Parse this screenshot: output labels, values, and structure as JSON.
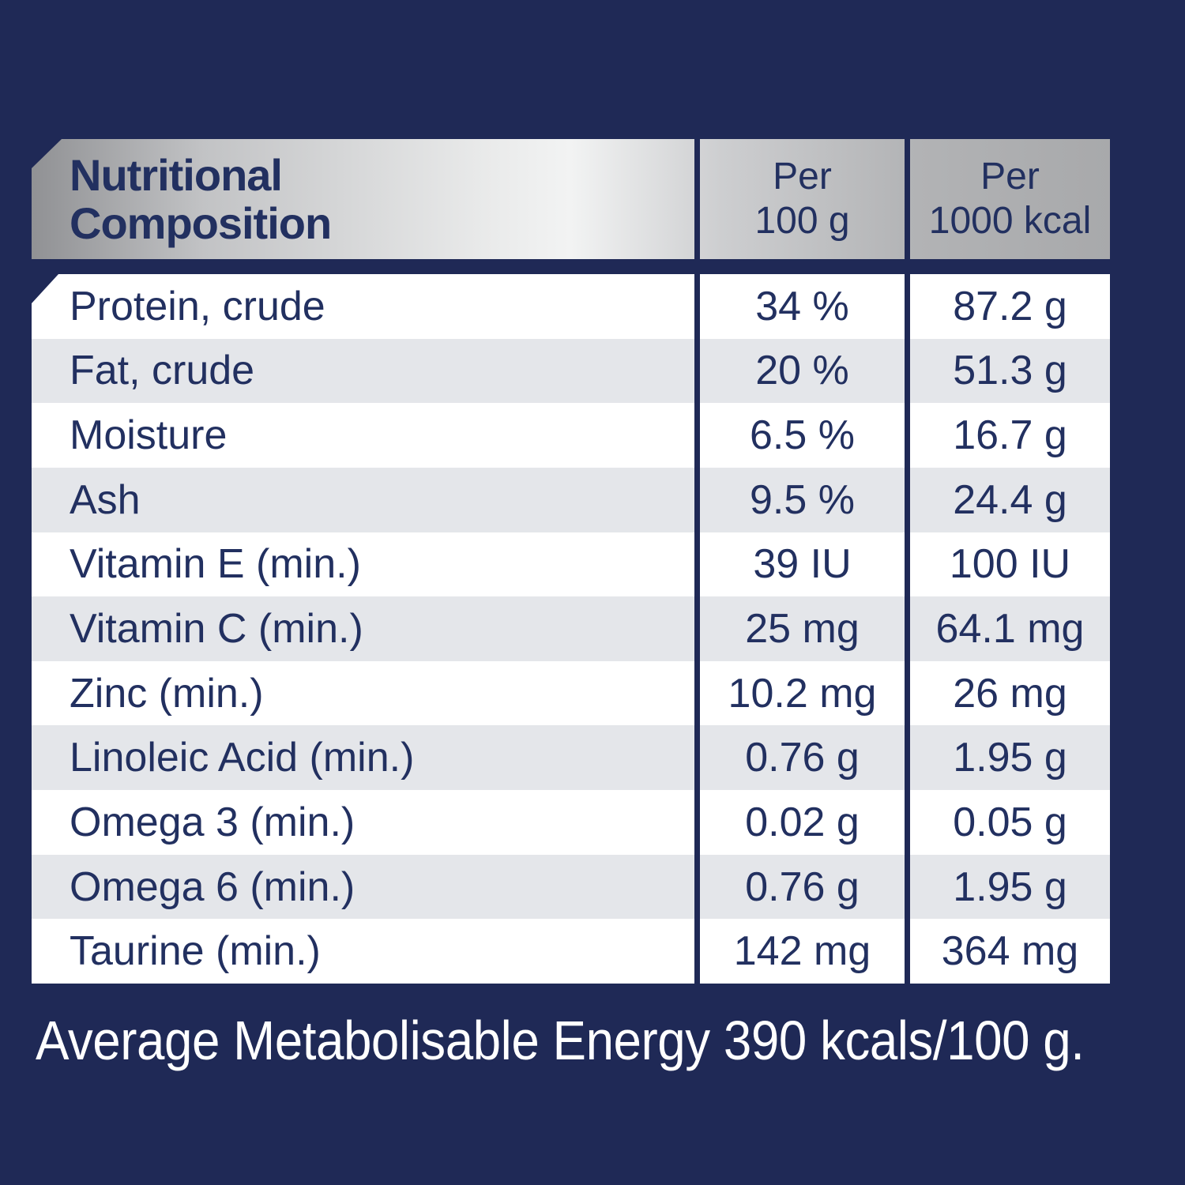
{
  "colors": {
    "background_navy": "#1f2956",
    "text_navy": "#223060",
    "row_alt_gray": "#e4e6ea",
    "row_white": "#ffffff",
    "header_silver_light": "#f2f3f3",
    "header_silver_dark": "#909194"
  },
  "table": {
    "title": "Nutritional\nComposition",
    "columns": [
      "Per\n100 g",
      "Per\n1000 kcal"
    ],
    "rows": [
      {
        "label": "Protein, crude",
        "per_100g": "34 %",
        "per_1000kcal": "87.2 g"
      },
      {
        "label": "Fat, crude",
        "per_100g": "20 %",
        "per_1000kcal": "51.3 g"
      },
      {
        "label": "Moisture",
        "per_100g": "6.5 %",
        "per_1000kcal": "16.7 g"
      },
      {
        "label": "Ash",
        "per_100g": "9.5 %",
        "per_1000kcal": "24.4 g"
      },
      {
        "label": "Vitamin E (min.)",
        "per_100g": "39 IU",
        "per_1000kcal": "100 IU"
      },
      {
        "label": "Vitamin C (min.)",
        "per_100g": "25 mg",
        "per_1000kcal": "64.1 mg"
      },
      {
        "label": "Zinc (min.)",
        "per_100g": "10.2 mg",
        "per_1000kcal": "26 mg"
      },
      {
        "label": "Linoleic Acid (min.)",
        "per_100g": "0.76 g",
        "per_1000kcal": "1.95 g"
      },
      {
        "label": "Omega 3 (min.)",
        "per_100g": "0.02 g",
        "per_1000kcal": "0.05 g"
      },
      {
        "label": "Omega 6 (min.)",
        "per_100g": "0.76 g",
        "per_1000kcal": "1.95 g"
      },
      {
        "label": "Taurine (min.)",
        "per_100g": "142 mg",
        "per_1000kcal": "364 mg"
      }
    ]
  },
  "footer": {
    "text": "Average Metabolisable Energy 390 kcals/100 g."
  }
}
